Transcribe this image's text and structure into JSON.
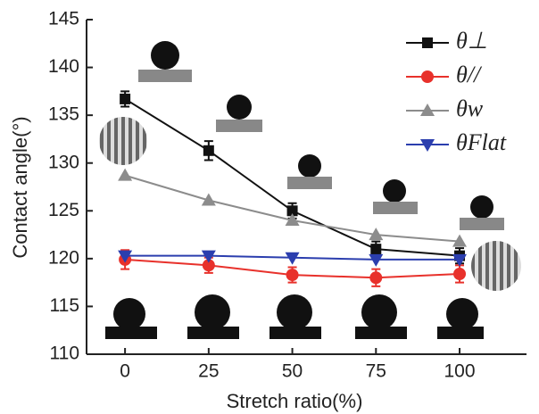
{
  "chart_data": {
    "type": "line",
    "x_label": "Stretch ratio(%)",
    "y_label": "Contact angle(°)",
    "x": [
      0,
      25,
      50,
      75,
      100
    ],
    "series": [
      {
        "name": "θ⊥",
        "color": "#111111",
        "marker": "square",
        "values": [
          136.7,
          131.3,
          125.0,
          121.0,
          120.3
        ],
        "errors": [
          0.8,
          1.0,
          0.8,
          0.8,
          0.8
        ]
      },
      {
        "name": "θ//",
        "color": "#e8312b",
        "marker": "circle",
        "values": [
          119.9,
          119.3,
          118.3,
          118.0,
          118.4
        ],
        "errors": [
          1.0,
          0.8,
          0.8,
          0.9,
          0.9
        ]
      },
      {
        "name": "θw",
        "color": "#8c8c8c",
        "marker": "triangle-up",
        "values": [
          128.7,
          126.1,
          124.0,
          122.5,
          121.8
        ]
      },
      {
        "name": "θFlat",
        "color": "#2b3eae",
        "marker": "triangle-down",
        "values": [
          120.3,
          120.3,
          120.1,
          119.9,
          119.9
        ]
      }
    ],
    "xlim": [
      -11.5,
      120
    ],
    "ylim": [
      110,
      145
    ],
    "xticks": [
      0,
      25,
      50,
      75,
      100
    ],
    "yticks": [
      110,
      115,
      120,
      125,
      130,
      135,
      140,
      145
    ],
    "legend": "upper right"
  }
}
